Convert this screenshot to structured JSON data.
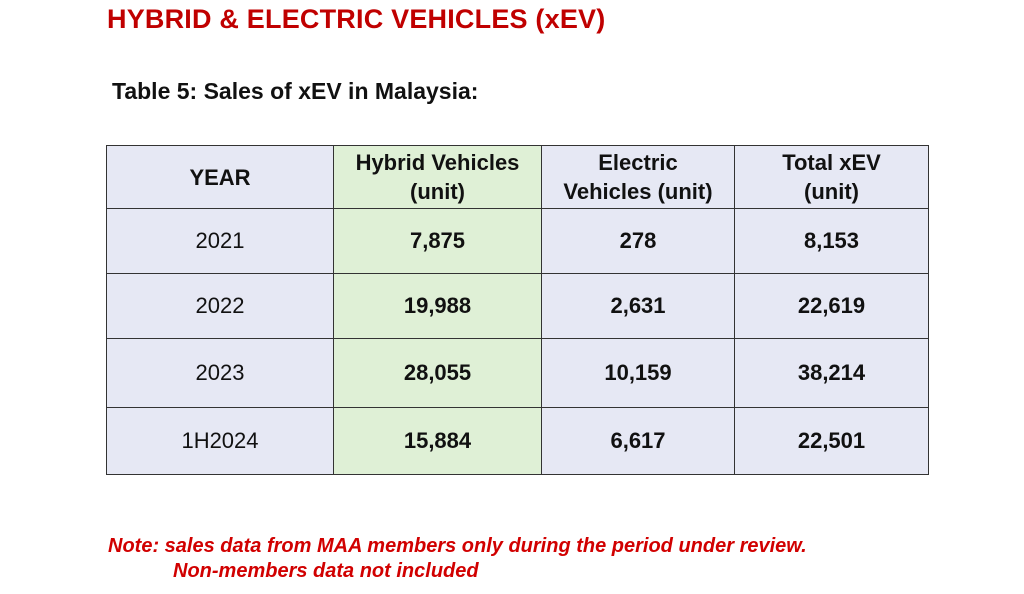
{
  "heading": "HYBRID & ELECTRIC VEHICLES (xEV)",
  "caption": "Table 5: Sales of xEV in Malaysia:",
  "table": {
    "headers": {
      "year": "YEAR",
      "hybrid_line1": "Hybrid Vehicles",
      "hybrid_line2": "(unit)",
      "electric_line1": "Electric",
      "electric_line2": "Vehicles (unit)",
      "total_line1": "Total xEV",
      "total_line2": "(unit)"
    },
    "rows": [
      {
        "year": "2021",
        "hybrid": "7,875",
        "electric": "278",
        "total": "8,153"
      },
      {
        "year": "2022",
        "hybrid": "19,988",
        "electric": "2,631",
        "total": "22,619"
      },
      {
        "year": "2023",
        "hybrid": "28,055",
        "electric": "10,159",
        "total": "38,214"
      },
      {
        "year": "1H2024",
        "hybrid": "15,884",
        "electric": "6,617",
        "total": "22,501"
      }
    ]
  },
  "note": {
    "line1": "Note: sales data from MAA members only during the period under review.",
    "line2": "Non-members data not included"
  },
  "colors": {
    "heading": "#c00000",
    "table_bg": "#e6e8f4",
    "hybrid_column_bg": "#dff0d6",
    "note": "#d10000"
  }
}
